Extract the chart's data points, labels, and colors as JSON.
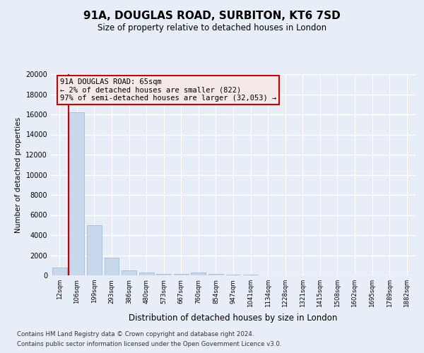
{
  "title": "91A, DOUGLAS ROAD, SURBITON, KT6 7SD",
  "subtitle": "Size of property relative to detached houses in London",
  "xlabel": "Distribution of detached houses by size in London",
  "ylabel": "Number of detached properties",
  "bar_color": "#c8d8ec",
  "bar_edge_color": "#9ab4d0",
  "categories": [
    "12sqm",
    "106sqm",
    "199sqm",
    "293sqm",
    "386sqm",
    "480sqm",
    "573sqm",
    "667sqm",
    "760sqm",
    "854sqm",
    "947sqm",
    "1041sqm",
    "1134sqm",
    "1228sqm",
    "1321sqm",
    "1415sqm",
    "1508sqm",
    "1602sqm",
    "1695sqm",
    "1789sqm",
    "1882sqm"
  ],
  "values": [
    800,
    16200,
    5000,
    1750,
    520,
    260,
    160,
    110,
    270,
    120,
    60,
    50,
    30,
    20,
    15,
    10,
    8,
    5,
    5,
    3,
    3
  ],
  "ylim": [
    0,
    20000
  ],
  "yticks": [
    0,
    2000,
    4000,
    6000,
    8000,
    10000,
    12000,
    14000,
    16000,
    18000,
    20000
  ],
  "annotation_title": "91A DOUGLAS ROAD: 65sqm",
  "annotation_line1": "← 2% of detached houses are smaller (822)",
  "annotation_line2": "97% of semi-detached houses are larger (32,053) →",
  "vline_x": 0.5,
  "footnote1": "Contains HM Land Registry data © Crown copyright and database right 2024.",
  "footnote2": "Contains public sector information licensed under the Open Government Licence v3.0.",
  "bg_color": "#e8eef8",
  "plot_bg_color": "#e8eef8",
  "grid_color": "white",
  "annotation_border_color": "#cc0000"
}
